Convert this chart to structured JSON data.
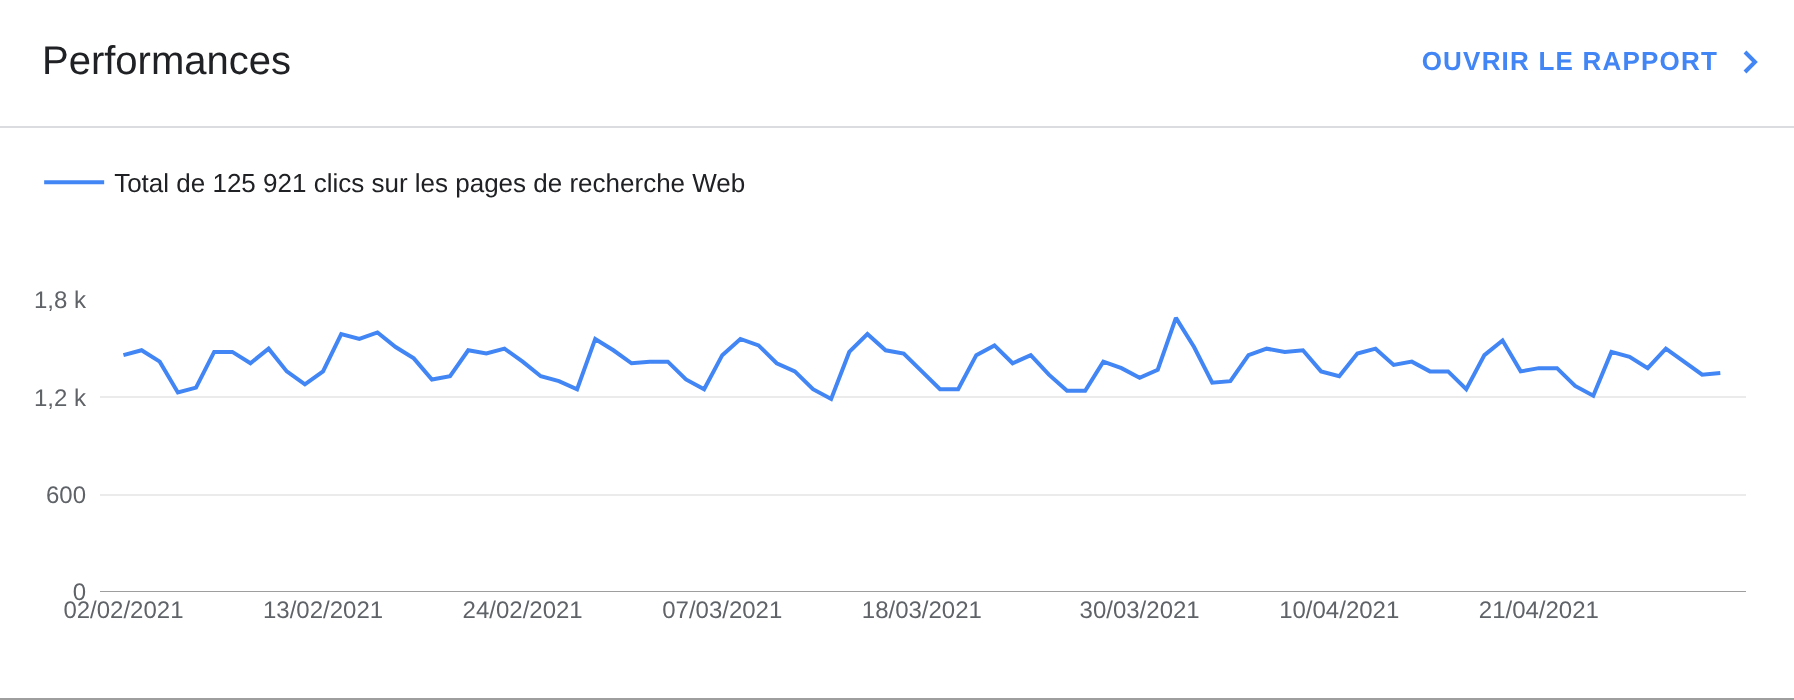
{
  "chart_data": {
    "type": "line",
    "title": "Performances",
    "annotations": [
      "OUVRIR LE RAPPORT"
    ],
    "x": [
      "2021-02-02",
      "2021-02-03",
      "2021-02-04",
      "2021-02-05",
      "2021-02-06",
      "2021-02-07",
      "2021-02-08",
      "2021-02-09",
      "2021-02-10",
      "2021-02-11",
      "2021-02-12",
      "2021-02-13",
      "2021-02-14",
      "2021-02-15",
      "2021-02-16",
      "2021-02-17",
      "2021-02-18",
      "2021-02-19",
      "2021-02-20",
      "2021-02-21",
      "2021-02-22",
      "2021-02-23",
      "2021-02-24",
      "2021-02-25",
      "2021-02-26",
      "2021-02-27",
      "2021-02-28",
      "2021-03-01",
      "2021-03-02",
      "2021-03-03",
      "2021-03-04",
      "2021-03-05",
      "2021-03-06",
      "2021-03-07",
      "2021-03-08",
      "2021-03-09",
      "2021-03-10",
      "2021-03-11",
      "2021-03-12",
      "2021-03-13",
      "2021-03-14",
      "2021-03-15",
      "2021-03-16",
      "2021-03-17",
      "2021-03-18",
      "2021-03-19",
      "2021-03-20",
      "2021-03-21",
      "2021-03-22",
      "2021-03-23",
      "2021-03-24",
      "2021-03-25",
      "2021-03-26",
      "2021-03-27",
      "2021-03-28",
      "2021-03-29",
      "2021-03-30",
      "2021-03-31",
      "2021-04-01",
      "2021-04-02",
      "2021-04-03",
      "2021-04-04",
      "2021-04-05",
      "2021-04-06",
      "2021-04-07",
      "2021-04-08",
      "2021-04-09",
      "2021-04-10",
      "2021-04-11",
      "2021-04-12",
      "2021-04-13",
      "2021-04-14",
      "2021-04-15",
      "2021-04-16",
      "2021-04-17",
      "2021-04-18",
      "2021-04-19",
      "2021-04-20",
      "2021-04-21",
      "2021-04-22",
      "2021-04-23",
      "2021-04-24",
      "2021-04-25",
      "2021-04-26",
      "2021-04-27",
      "2021-04-28",
      "2021-04-29",
      "2021-04-30",
      "2021-05-01"
    ],
    "series": [
      {
        "name": "Total de 125 921 clics sur les pages de recherche Web",
        "color": "#4285f4",
        "values": [
          1460,
          1490,
          1420,
          1230,
          1260,
          1480,
          1480,
          1410,
          1500,
          1360,
          1280,
          1360,
          1590,
          1560,
          1600,
          1510,
          1440,
          1310,
          1330,
          1490,
          1470,
          1500,
          1420,
          1330,
          1300,
          1250,
          1560,
          1490,
          1410,
          1420,
          1420,
          1310,
          1250,
          1460,
          1560,
          1520,
          1410,
          1360,
          1250,
          1190,
          1480,
          1590,
          1490,
          1470,
          1360,
          1250,
          1250,
          1460,
          1520,
          1410,
          1460,
          1340,
          1240,
          1240,
          1420,
          1380,
          1320,
          1370,
          1690,
          1510,
          1290,
          1300,
          1460,
          1500,
          1480,
          1490,
          1360,
          1330,
          1470,
          1500,
          1400,
          1420,
          1360,
          1360,
          1250,
          1460,
          1550,
          1360,
          1380,
          1380,
          1270,
          1210,
          1480,
          1450,
          1380,
          1500,
          1420,
          1340,
          1350
        ]
      }
    ],
    "xlim": [
      "2021-01-31T17:00",
      "2021-05-02T10:00"
    ],
    "xticks": [
      {
        "value": "2021-02-02",
        "label": "02/02/2021"
      },
      {
        "value": "2021-02-13",
        "label": "13/02/2021"
      },
      {
        "value": "2021-02-24",
        "label": "24/02/2021"
      },
      {
        "value": "2021-03-07",
        "label": "07/03/2021"
      },
      {
        "value": "2021-03-18",
        "label": "18/03/2021"
      },
      {
        "value": "2021-03-30",
        "label": "30/03/2021"
      },
      {
        "value": "2021-04-10",
        "label": "10/04/2021"
      },
      {
        "value": "2021-04-21",
        "label": "21/04/2021"
      }
    ],
    "ylim": [
      0,
      1800
    ],
    "yticks": [
      0,
      600,
      {
        "value": 1200,
        "label": "1,2 k"
      },
      {
        "value": 1800,
        "label": "1,8 k"
      }
    ],
    "grid": "y",
    "legend": "top left",
    "marker": "none",
    "line_style": "solid"
  }
}
